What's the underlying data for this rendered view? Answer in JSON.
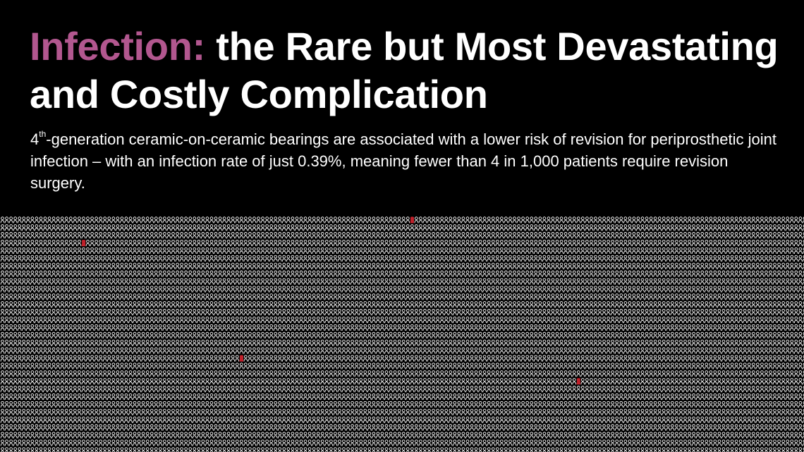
{
  "headline": {
    "accent": "Infection:",
    "rest": " the Rare but Most Devastating and Costly Complication"
  },
  "body_text": {
    "lead": "4",
    "sup": "th",
    "rest": "-generation ceramic-on-ceramic bearings are associated with a lower risk of revision for periprosthetic joint infection – with an infection rate of just 0.39%, meaning fewer than 4 in 1,000 patients require revision surgery."
  },
  "pictogram": {
    "total_figures": 1000,
    "highlighted_figures": 4,
    "icon": "person-icon",
    "figure_color": "#ffffff",
    "highlight_color": "#c0202a"
  },
  "colors": {
    "background": "#000000",
    "accent": "#b2578f",
    "text": "#ffffff"
  }
}
